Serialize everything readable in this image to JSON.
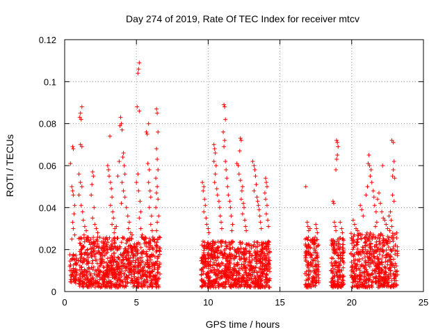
{
  "chart_data": {
    "type": "scatter",
    "title": "Day 274 of 2019, Rate Of TEC Index for receiver mtcv",
    "xlabel": "GPS time / hours",
    "ylabel": "ROTI / TECUs",
    "xlim": [
      0,
      25
    ],
    "ylim": [
      0,
      0.12
    ],
    "xticks": [
      0,
      5,
      10,
      15,
      20,
      25
    ],
    "xtick_labels": [
      "0",
      "5",
      "10",
      "15",
      "20",
      "25"
    ],
    "yticks": [
      0,
      0.02,
      0.04,
      0.06,
      0.08,
      0.1,
      0.12
    ],
    "ytick_labels": [
      "0",
      "0.02",
      "0.04",
      "0.06",
      "0.08",
      "0.1",
      "0.12"
    ],
    "grid": true,
    "marker": "+",
    "color": "#ff0000",
    "series": [
      {
        "name": "ROTI",
        "points": [
          [
            0.4,
            0.061
          ],
          [
            0.55,
            0.069
          ],
          [
            0.6,
            0.068
          ],
          [
            0.5,
            0.05
          ],
          [
            0.55,
            0.048
          ],
          [
            0.6,
            0.046
          ],
          [
            0.7,
            0.041
          ],
          [
            0.65,
            0.037
          ],
          [
            0.55,
            0.033
          ],
          [
            0.6,
            0.03
          ],
          [
            0.7,
            0.027
          ],
          [
            0.5,
            0.025
          ],
          [
            1.05,
            0.083
          ],
          [
            1.1,
            0.085
          ],
          [
            1.2,
            0.088
          ],
          [
            1.15,
            0.082
          ],
          [
            1.1,
            0.07
          ],
          [
            1.2,
            0.069
          ],
          [
            1.0,
            0.056
          ],
          [
            1.1,
            0.052
          ],
          [
            1.2,
            0.05
          ],
          [
            1.0,
            0.046
          ],
          [
            1.15,
            0.041
          ],
          [
            1.25,
            0.038
          ],
          [
            1.3,
            0.034
          ],
          [
            1.4,
            0.031
          ],
          [
            1.5,
            0.029
          ],
          [
            1.35,
            0.027
          ],
          [
            1.9,
            0.051
          ],
          [
            2.0,
            0.055
          ],
          [
            1.95,
            0.057
          ],
          [
            1.85,
            0.046
          ],
          [
            2.05,
            0.04
          ],
          [
            1.95,
            0.035
          ],
          [
            2.1,
            0.032
          ],
          [
            2.2,
            0.03
          ],
          [
            2.3,
            0.028
          ],
          [
            3.0,
            0.06
          ],
          [
            3.05,
            0.058
          ],
          [
            3.1,
            0.055
          ],
          [
            3.2,
            0.052
          ],
          [
            3.15,
            0.074
          ],
          [
            3.25,
            0.049
          ],
          [
            3.3,
            0.045
          ],
          [
            3.2,
            0.041
          ],
          [
            3.35,
            0.038
          ],
          [
            3.4,
            0.035
          ],
          [
            3.3,
            0.032
          ],
          [
            3.5,
            0.03
          ],
          [
            3.6,
            0.031
          ],
          [
            3.45,
            0.028
          ],
          [
            3.7,
            0.055
          ],
          [
            3.8,
            0.062
          ],
          [
            3.85,
            0.079
          ],
          [
            3.95,
            0.08
          ],
          [
            3.9,
            0.083
          ],
          [
            4.0,
            0.077
          ],
          [
            4.1,
            0.066
          ],
          [
            4.05,
            0.064
          ],
          [
            4.15,
            0.06
          ],
          [
            4.2,
            0.056
          ],
          [
            4.0,
            0.052
          ],
          [
            4.1,
            0.048
          ],
          [
            4.2,
            0.045
          ],
          [
            3.95,
            0.042
          ],
          [
            4.3,
            0.04
          ],
          [
            4.4,
            0.036
          ],
          [
            4.5,
            0.033
          ],
          [
            4.45,
            0.03
          ],
          [
            4.6,
            0.028
          ],
          [
            4.7,
            0.027
          ],
          [
            5.1,
            0.104
          ],
          [
            5.15,
            0.106
          ],
          [
            5.2,
            0.109
          ],
          [
            5.05,
            0.088
          ],
          [
            5.2,
            0.086
          ],
          [
            5.1,
            0.056
          ],
          [
            5.0,
            0.052
          ],
          [
            5.15,
            0.048
          ],
          [
            5.25,
            0.043
          ],
          [
            5.3,
            0.038
          ],
          [
            5.2,
            0.035
          ],
          [
            5.3,
            0.03
          ],
          [
            5.4,
            0.027
          ],
          [
            5.7,
            0.076
          ],
          [
            5.75,
            0.075
          ],
          [
            5.85,
            0.08
          ],
          [
            5.8,
            0.061
          ],
          [
            5.9,
            0.058
          ],
          [
            5.85,
            0.052
          ],
          [
            5.95,
            0.048
          ],
          [
            6.0,
            0.045
          ],
          [
            5.9,
            0.04
          ],
          [
            6.05,
            0.036
          ],
          [
            6.0,
            0.032
          ],
          [
            6.1,
            0.029
          ],
          [
            6.4,
            0.087
          ],
          [
            6.45,
            0.085
          ],
          [
            6.5,
            0.076
          ],
          [
            6.4,
            0.068
          ],
          [
            6.45,
            0.063
          ],
          [
            6.5,
            0.058
          ],
          [
            6.35,
            0.054
          ],
          [
            6.45,
            0.05
          ],
          [
            6.4,
            0.047
          ],
          [
            6.5,
            0.044
          ],
          [
            6.35,
            0.04
          ],
          [
            6.55,
            0.036
          ],
          [
            6.45,
            0.033
          ],
          [
            6.4,
            0.029
          ],
          [
            9.6,
            0.052
          ],
          [
            9.7,
            0.05
          ],
          [
            9.65,
            0.048
          ],
          [
            9.75,
            0.044
          ],
          [
            9.8,
            0.041
          ],
          [
            9.7,
            0.038
          ],
          [
            9.85,
            0.035
          ],
          [
            9.9,
            0.032
          ],
          [
            10.0,
            0.03
          ],
          [
            10.05,
            0.028
          ],
          [
            10.4,
            0.07
          ],
          [
            10.45,
            0.068
          ],
          [
            10.5,
            0.066
          ],
          [
            10.4,
            0.062
          ],
          [
            10.55,
            0.06
          ],
          [
            10.5,
            0.056
          ],
          [
            10.45,
            0.052
          ],
          [
            10.6,
            0.049
          ],
          [
            10.65,
            0.046
          ],
          [
            10.75,
            0.043
          ],
          [
            10.8,
            0.04
          ],
          [
            10.85,
            0.036
          ],
          [
            10.9,
            0.033
          ],
          [
            10.95,
            0.03
          ],
          [
            11.1,
            0.089
          ],
          [
            11.15,
            0.088
          ],
          [
            11.2,
            0.082
          ],
          [
            11.05,
            0.076
          ],
          [
            11.15,
            0.072
          ],
          [
            11.1,
            0.069
          ],
          [
            11.2,
            0.062
          ],
          [
            11.25,
            0.058
          ],
          [
            11.3,
            0.054
          ],
          [
            11.35,
            0.05
          ],
          [
            11.4,
            0.046
          ],
          [
            11.5,
            0.043
          ],
          [
            11.55,
            0.04
          ],
          [
            11.6,
            0.036
          ],
          [
            11.7,
            0.032
          ],
          [
            11.65,
            0.029
          ],
          [
            12.0,
            0.061
          ],
          [
            12.1,
            0.06
          ],
          [
            12.2,
            0.067
          ],
          [
            12.25,
            0.073
          ],
          [
            12.3,
            0.072
          ],
          [
            12.15,
            0.056
          ],
          [
            12.25,
            0.053
          ],
          [
            12.4,
            0.05
          ],
          [
            12.35,
            0.048
          ],
          [
            12.3,
            0.044
          ],
          [
            12.45,
            0.042
          ],
          [
            12.5,
            0.04
          ],
          [
            12.4,
            0.037
          ],
          [
            12.55,
            0.034
          ],
          [
            12.6,
            0.031
          ],
          [
            12.65,
            0.029
          ],
          [
            13.1,
            0.062
          ],
          [
            13.2,
            0.06
          ],
          [
            13.25,
            0.058
          ],
          [
            13.3,
            0.055
          ],
          [
            13.35,
            0.051
          ],
          [
            13.2,
            0.048
          ],
          [
            13.4,
            0.045
          ],
          [
            13.45,
            0.043
          ],
          [
            13.5,
            0.041
          ],
          [
            13.55,
            0.039
          ],
          [
            13.6,
            0.036
          ],
          [
            13.65,
            0.033
          ],
          [
            13.7,
            0.03
          ],
          [
            14.0,
            0.054
          ],
          [
            14.05,
            0.052
          ],
          [
            14.1,
            0.05
          ],
          [
            13.95,
            0.047
          ],
          [
            14.0,
            0.044
          ],
          [
            14.1,
            0.041
          ],
          [
            14.05,
            0.037
          ],
          [
            14.15,
            0.034
          ],
          [
            14.2,
            0.031
          ],
          [
            16.8,
            0.05
          ],
          [
            16.9,
            0.033
          ],
          [
            16.95,
            0.031
          ],
          [
            17.0,
            0.029
          ],
          [
            17.1,
            0.03
          ],
          [
            17.5,
            0.032
          ],
          [
            17.55,
            0.03
          ],
          [
            17.6,
            0.028
          ],
          [
            18.7,
            0.043
          ],
          [
            18.75,
            0.042
          ],
          [
            18.8,
            0.033
          ],
          [
            18.85,
            0.031
          ],
          [
            18.9,
            0.029
          ],
          [
            18.95,
            0.072
          ],
          [
            19.0,
            0.071
          ],
          [
            19.05,
            0.069
          ],
          [
            19.0,
            0.065
          ],
          [
            18.95,
            0.063
          ],
          [
            18.9,
            0.058
          ],
          [
            19.2,
            0.033
          ],
          [
            19.3,
            0.03
          ],
          [
            19.35,
            0.028
          ],
          [
            20.1,
            0.034
          ],
          [
            20.2,
            0.032
          ],
          [
            20.3,
            0.03
          ],
          [
            20.4,
            0.029
          ],
          [
            20.6,
            0.041
          ],
          [
            20.7,
            0.039
          ],
          [
            20.8,
            0.036
          ],
          [
            21.0,
            0.046
          ],
          [
            21.1,
            0.05
          ],
          [
            21.15,
            0.061
          ],
          [
            21.2,
            0.065
          ],
          [
            21.25,
            0.06
          ],
          [
            21.3,
            0.055
          ],
          [
            21.35,
            0.058
          ],
          [
            21.4,
            0.052
          ],
          [
            21.5,
            0.048
          ],
          [
            21.55,
            0.045
          ],
          [
            21.6,
            0.041
          ],
          [
            21.7,
            0.038
          ],
          [
            21.8,
            0.044
          ],
          [
            21.9,
            0.047
          ],
          [
            22.0,
            0.042
          ],
          [
            22.1,
            0.038
          ],
          [
            22.2,
            0.035
          ],
          [
            21.75,
            0.033
          ],
          [
            21.65,
            0.031
          ],
          [
            22.15,
            0.06
          ],
          [
            22.3,
            0.034
          ],
          [
            22.4,
            0.032
          ],
          [
            22.5,
            0.03
          ],
          [
            22.6,
            0.036
          ],
          [
            22.7,
            0.038
          ],
          [
            22.75,
            0.034
          ],
          [
            22.8,
            0.031
          ],
          [
            22.65,
            0.029
          ],
          [
            22.8,
            0.072
          ],
          [
            22.9,
            0.071
          ],
          [
            22.95,
            0.062
          ],
          [
            22.85,
            0.055
          ],
          [
            23.0,
            0.054
          ],
          [
            22.9,
            0.058
          ],
          [
            22.85,
            0.046
          ],
          [
            22.95,
            0.043
          ]
        ],
        "dense_bands": [
          {
            "x": [
              0.35,
              0.85
            ],
            "y": [
              0.004,
              0.018
            ],
            "n": 60,
            "seed": 1
          },
          {
            "x": [
              0.95,
              6.65
            ],
            "y": [
              0.002,
              0.026
            ],
            "n": 900,
            "seed": 2
          },
          {
            "x": [
              9.5,
              14.3
            ],
            "y": [
              0.002,
              0.024
            ],
            "n": 800,
            "seed": 3
          },
          {
            "x": [
              16.75,
              17.7
            ],
            "y": [
              0.002,
              0.026
            ],
            "n": 160,
            "seed": 4
          },
          {
            "x": [
              18.55,
              19.45
            ],
            "y": [
              0.002,
              0.026
            ],
            "n": 160,
            "seed": 5
          },
          {
            "x": [
              19.95,
              23.2
            ],
            "y": [
              0.002,
              0.028
            ],
            "n": 520,
            "seed": 6
          }
        ]
      }
    ]
  }
}
